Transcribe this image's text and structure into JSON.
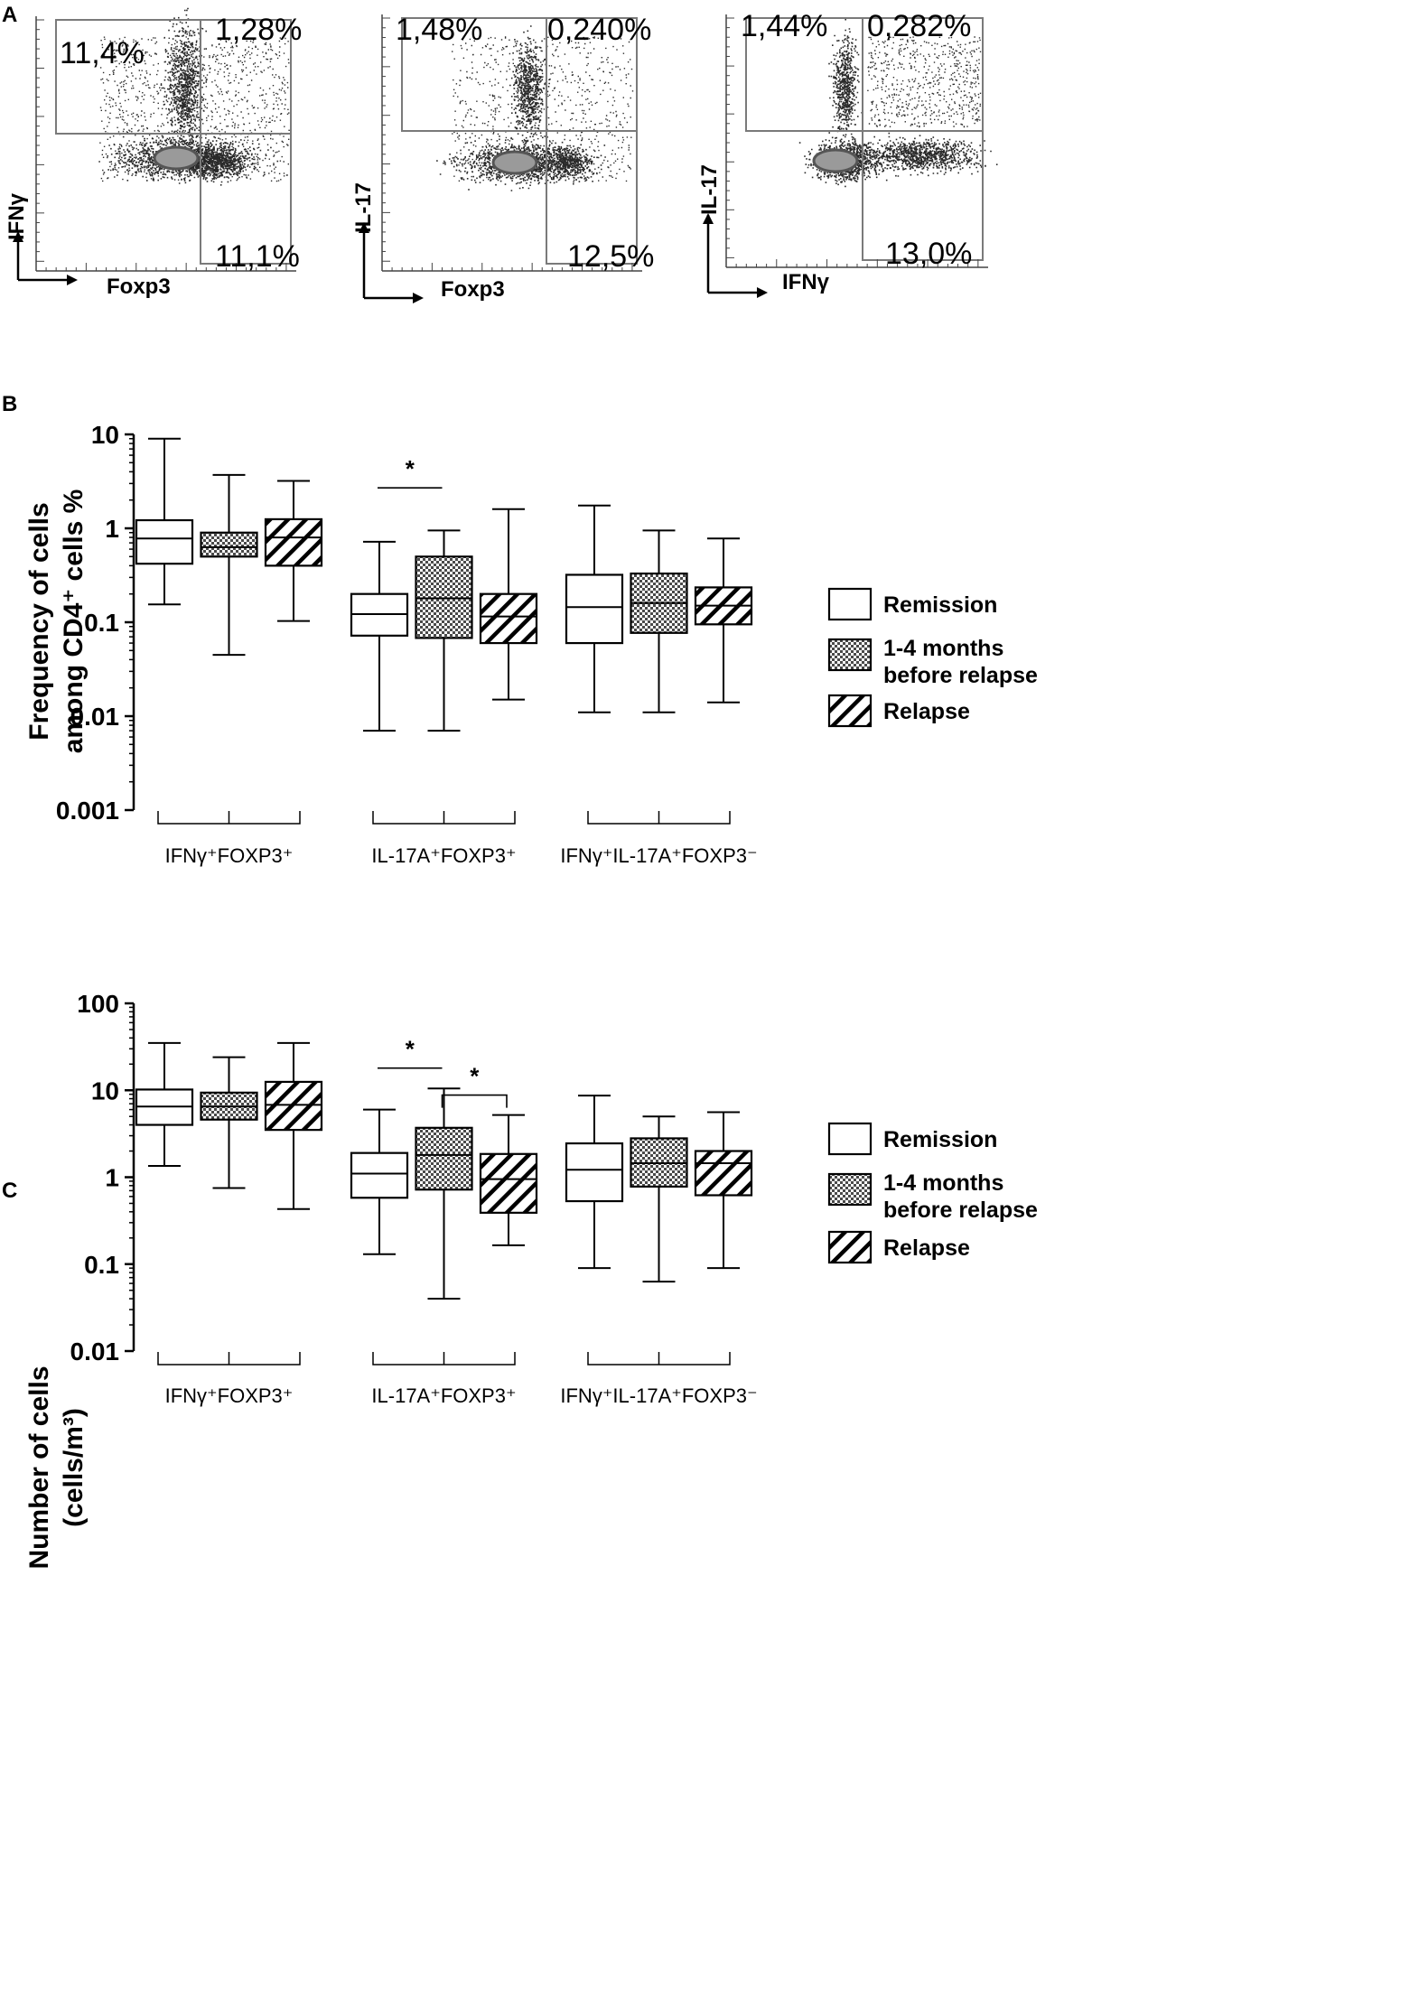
{
  "colors": {
    "ink": "#000000",
    "paper": "#ffffff",
    "dot": "#2a2a2a",
    "gate": "#7a7a7a",
    "core": "#9a9a9a"
  },
  "flow": {
    "letter": "A",
    "plots": [
      {
        "id": "p1",
        "y_label": "IFNγ",
        "x_label": "Foxp3",
        "q_ul": "11,4%",
        "q_ur": "1,28%",
        "q_lr": "11,1%"
      },
      {
        "id": "p2",
        "y_label": "IL-17",
        "x_label": "Foxp3",
        "q_ul": "1,48%",
        "q_ur": "0,240%",
        "q_lr": "12,5%"
      },
      {
        "id": "p3",
        "y_label": "IL-17",
        "x_label": "IFNγ",
        "q_ul": "1,44%",
        "q_ur": "0,282%",
        "q_lr": "13,0%"
      }
    ]
  },
  "chart_data": [
    {
      "type": "box",
      "letter": "B",
      "ylabel_line1": "Frequency of cells",
      "ylabel_line2": "among CD4⁺ cells %",
      "yscale": "log",
      "ylim": [
        0.001,
        10
      ],
      "yticks": [
        {
          "value": 10,
          "label": "10"
        },
        {
          "value": 1,
          "label": "1"
        },
        {
          "value": 0.1,
          "label": "0.1"
        },
        {
          "value": 0.01,
          "label": "0.01"
        },
        {
          "value": 0.001,
          "label": "0.001"
        }
      ],
      "groups": [
        {
          "label": "IFNγ⁺FOXP3⁺",
          "boxes": [
            {
              "series": "remission",
              "min": 0.155,
              "q1": 0.42,
              "median": 0.78,
              "q3": 1.22,
              "max": 9.0
            },
            {
              "series": "before",
              "min": 0.045,
              "q1": 0.5,
              "median": 0.63,
              "q3": 0.9,
              "max": 3.7
            },
            {
              "series": "relapse",
              "min": 0.103,
              "q1": 0.4,
              "median": 0.8,
              "q3": 1.25,
              "max": 3.2
            }
          ]
        },
        {
          "label": "IL-17A⁺FOXP3⁺",
          "boxes": [
            {
              "series": "remission",
              "min": 0.007,
              "q1": 0.072,
              "median": 0.122,
              "q3": 0.2,
              "max": 0.72
            },
            {
              "series": "before",
              "min": 0.007,
              "q1": 0.068,
              "median": 0.18,
              "q3": 0.5,
              "max": 0.95
            },
            {
              "series": "relapse",
              "min": 0.015,
              "q1": 0.06,
              "median": 0.115,
              "q3": 0.2,
              "max": 1.6
            }
          ]
        },
        {
          "label": "IFNγ⁺IL-17A⁺FOXP3⁻",
          "boxes": [
            {
              "series": "remission",
              "min": 0.011,
              "q1": 0.06,
              "median": 0.145,
              "q3": 0.32,
              "max": 1.75
            },
            {
              "series": "before",
              "min": 0.011,
              "q1": 0.077,
              "median": 0.16,
              "q3": 0.33,
              "max": 0.95
            },
            {
              "series": "relapse",
              "min": 0.014,
              "q1": 0.095,
              "median": 0.15,
              "q3": 0.235,
              "max": 0.78
            }
          ]
        }
      ],
      "significance": [
        {
          "group": 1,
          "from": 0,
          "to": 1,
          "level": 2.7,
          "label": "*",
          "bracket": false
        }
      ],
      "legend": [
        {
          "series": "remission",
          "label": "Remission"
        },
        {
          "series": "before",
          "label": "1-4 months before relapse"
        },
        {
          "series": "relapse",
          "label": "Relapse"
        }
      ]
    },
    {
      "type": "box",
      "letter": "C",
      "ylabel_line1": "Number of cells",
      "ylabel_line2": "(cells/m³)",
      "yscale": "log",
      "ylim": [
        0.01,
        100
      ],
      "yticks": [
        {
          "value": 100,
          "label": "100"
        },
        {
          "value": 10,
          "label": "10"
        },
        {
          "value": 1,
          "label": "1"
        },
        {
          "value": 0.1,
          "label": "0.1"
        },
        {
          "value": 0.01,
          "label": "0.01"
        }
      ],
      "groups": [
        {
          "label": "IFNγ⁺FOXP3⁺",
          "boxes": [
            {
              "series": "remission",
              "min": 1.35,
              "q1": 4.0,
              "median": 6.5,
              "q3": 10.2,
              "max": 35.0
            },
            {
              "series": "before",
              "min": 0.75,
              "q1": 4.6,
              "median": 6.5,
              "q3": 9.4,
              "max": 24.0
            },
            {
              "series": "relapse",
              "min": 0.43,
              "q1": 3.5,
              "median": 6.8,
              "q3": 12.5,
              "max": 35.0
            }
          ]
        },
        {
          "label": "IL-17A⁺FOXP3⁺",
          "boxes": [
            {
              "series": "remission",
              "min": 0.13,
              "q1": 0.58,
              "median": 1.1,
              "q3": 1.9,
              "max": 6.0
            },
            {
              "series": "before",
              "min": 0.04,
              "q1": 0.72,
              "median": 1.8,
              "q3": 3.7,
              "max": 10.5
            },
            {
              "series": "relapse",
              "min": 0.165,
              "q1": 0.39,
              "median": 0.95,
              "q3": 1.85,
              "max": 5.2
            }
          ]
        },
        {
          "label": "IFNγ⁺IL-17A⁺FOXP3⁻",
          "boxes": [
            {
              "series": "remission",
              "min": 0.09,
              "q1": 0.53,
              "median": 1.22,
              "q3": 2.45,
              "max": 8.7
            },
            {
              "series": "before",
              "min": 0.063,
              "q1": 0.78,
              "median": 1.45,
              "q3": 2.8,
              "max": 5.0
            },
            {
              "series": "relapse",
              "min": 0.09,
              "q1": 0.62,
              "median": 1.45,
              "q3": 2.0,
              "max": 5.6
            }
          ]
        }
      ],
      "significance": [
        {
          "group": 1,
          "from": 0,
          "to": 1,
          "level": 18.0,
          "label": "*",
          "bracket": false
        },
        {
          "group": 1,
          "from": 1,
          "to": 2,
          "level": 8.8,
          "label": "*",
          "bracket": true
        }
      ],
      "legend": [
        {
          "series": "remission",
          "label": "Remission"
        },
        {
          "series": "before",
          "label": "1-4 months before relapse"
        },
        {
          "series": "relapse",
          "label": "Relapse"
        }
      ]
    }
  ]
}
